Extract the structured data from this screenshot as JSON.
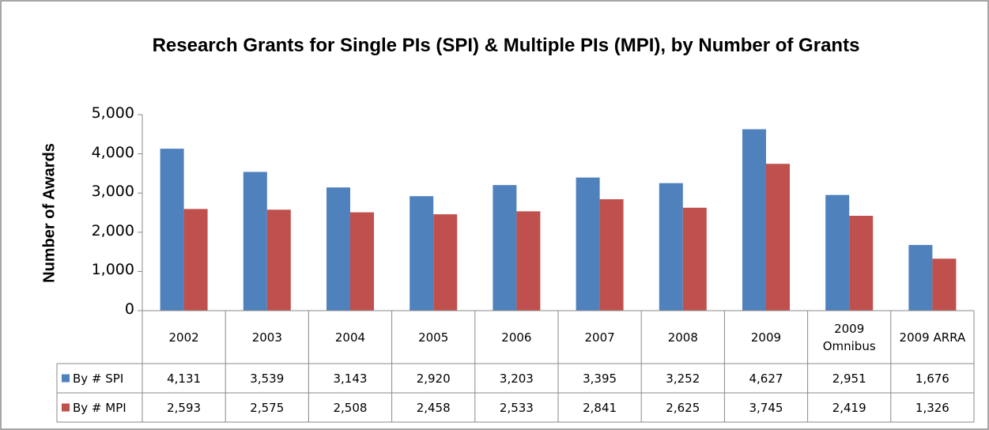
{
  "chart_data": {
    "type": "bar",
    "title": "Research Grants for Single PIs (SPI)  & Multiple PIs (MPI), by Number of Grants",
    "y_label": "Number of Awards",
    "categories": [
      "2002",
      "2003",
      "2004",
      "2005",
      "2006",
      "2007",
      "2008",
      "2009",
      "2009 Omnibus",
      "2009 ARRA"
    ],
    "series": [
      {
        "name": "By # SPI",
        "color": "#4f81bd",
        "values": [
          4131,
          3539,
          3143,
          2920,
          3203,
          3395,
          3252,
          4627,
          2951,
          1676
        ],
        "value_labels": [
          "4,131",
          "3,539",
          "3,143",
          "2,920",
          "3,203",
          "3,395",
          "3,252",
          "4,627",
          "2,951",
          "1,676"
        ]
      },
      {
        "name": "By # MPI",
        "color": "#c0504d",
        "values": [
          2593,
          2575,
          2508,
          2458,
          2533,
          2841,
          2625,
          3745,
          2419,
          1326
        ],
        "value_labels": [
          "2,593",
          "2,575",
          "2,508",
          "2,458",
          "2,533",
          "2,841",
          "2,625",
          "3,745",
          "2,419",
          "1,326"
        ]
      }
    ],
    "ylim": [
      0,
      5000
    ],
    "yticks": [
      0,
      {
        "value": 1000,
        "label": "1,000"
      },
      {
        "value": 2000,
        "label": "2,000"
      },
      {
        "value": 3000,
        "label": "3,000"
      },
      {
        "value": 4000,
        "label": "4,000"
      },
      {
        "value": 5000,
        "label": "5,000"
      }
    ]
  }
}
